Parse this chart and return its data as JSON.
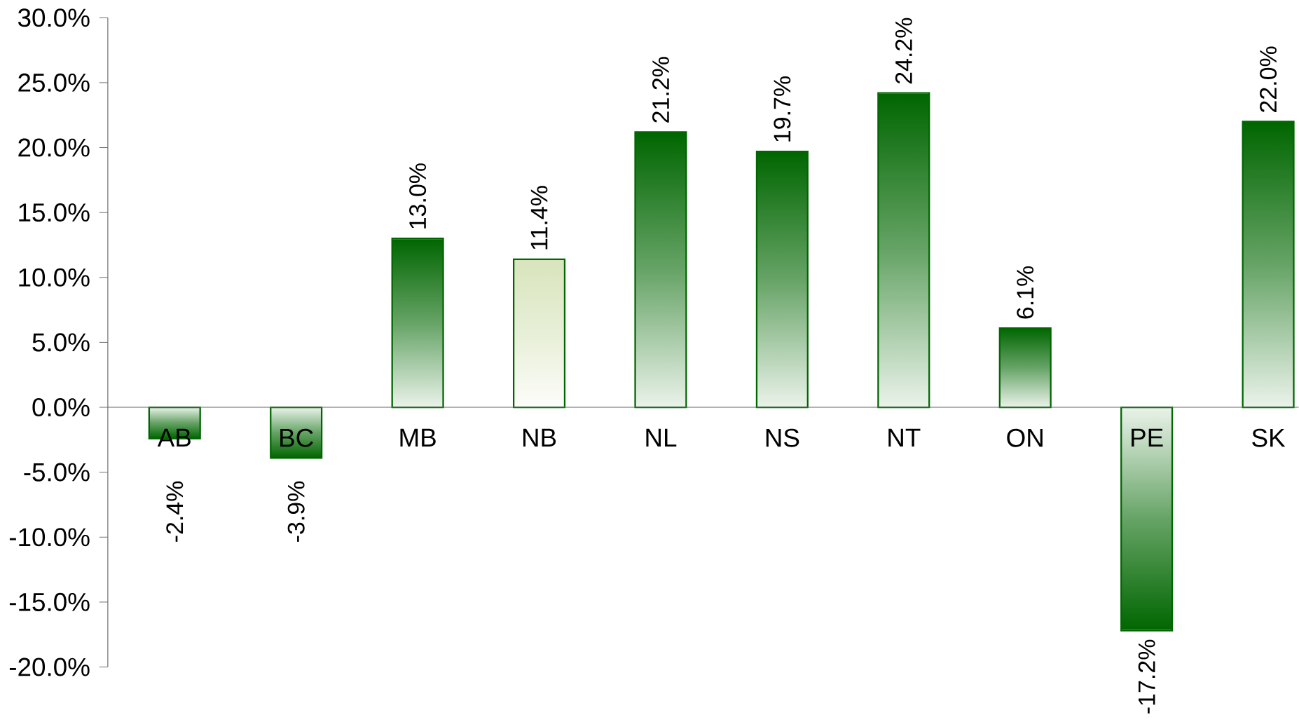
{
  "chart_data": {
    "type": "bar",
    "categories": [
      "AB",
      "BC",
      "MB",
      "NB",
      "NL",
      "NS",
      "NT",
      "ON",
      "PE",
      "SK"
    ],
    "values": [
      -2.4,
      -3.9,
      13.0,
      11.4,
      21.2,
      19.7,
      24.2,
      6.1,
      -17.2,
      22.0
    ],
    "value_labels": [
      "-2.4%",
      "-3.9%",
      "13.0%",
      "11.4%",
      "21.2%",
      "19.7%",
      "24.2%",
      "6.1%",
      "-17.2%",
      "22.0%"
    ],
    "colors": [
      "#006600",
      "#006600",
      "#006600",
      "#d8e4bc",
      "#006600",
      "#006600",
      "#006600",
      "#006600",
      "#006600",
      "#006600"
    ],
    "ylim": [
      -20,
      30
    ],
    "yticks": [
      {
        "value": -20,
        "label": "-20.0%"
      },
      {
        "value": -15,
        "label": "-15.0%"
      },
      {
        "value": -10,
        "label": "-10.0%"
      },
      {
        "value": -5,
        "label": "-5.0%"
      },
      {
        "value": 0,
        "label": "0.0%"
      },
      {
        "value": 5,
        "label": "5.0%"
      },
      {
        "value": 10,
        "label": "10.0%"
      },
      {
        "value": 15,
        "label": "15.0%"
      },
      {
        "value": 20,
        "label": "20.0%"
      },
      {
        "value": 25,
        "label": "25.0%"
      },
      {
        "value": 30,
        "label": "30.0%"
      }
    ],
    "grid": false
  }
}
